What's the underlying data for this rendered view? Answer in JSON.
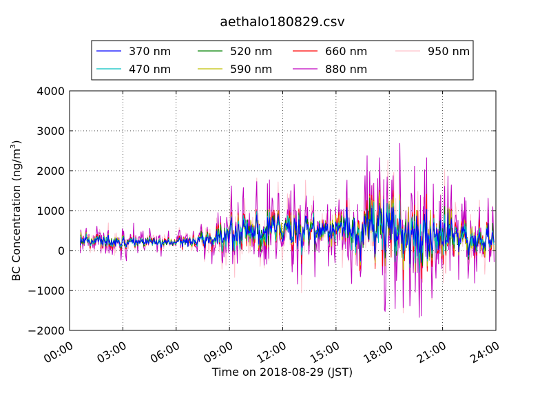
{
  "chart_data": {
    "type": "line",
    "title": "aethalo180829.csv",
    "xlabel": "Time on 2018-08-29 (JST)",
    "ylabel_main": "BC Concentration (ng/m",
    "ylabel_sup": "3",
    "ylabel_end": ")",
    "xlim": [
      0,
      24
    ],
    "ylim": [
      -2000,
      4000
    ],
    "x_ticks": [
      0,
      3,
      6,
      9,
      12,
      15,
      18,
      21,
      24
    ],
    "x_tick_labels": [
      "00:00",
      "03:00",
      "06:00",
      "09:00",
      "12:00",
      "15:00",
      "18:00",
      "21:00",
      "24:00"
    ],
    "y_ticks": [
      -2000,
      -1000,
      0,
      1000,
      2000,
      3000,
      4000
    ],
    "y_tick_labels": [
      "−2000",
      "−1000",
      "0",
      "1000",
      "2000",
      "3000",
      "4000"
    ],
    "grid": true,
    "legend_position": "top",
    "series": [
      {
        "name": "370 nm",
        "color": "#0000ff",
        "scale": 0.45,
        "seed": 11
      },
      {
        "name": "470 nm",
        "color": "#00bfbf",
        "scale": 0.5,
        "seed": 23
      },
      {
        "name": "520 nm",
        "color": "#008000",
        "scale": 0.55,
        "seed": 37
      },
      {
        "name": "590 nm",
        "color": "#bfbf00",
        "scale": 0.6,
        "seed": 41
      },
      {
        "name": "660 nm",
        "color": "#ff0000",
        "scale": 0.7,
        "seed": 53
      },
      {
        "name": "880 nm",
        "color": "#bf00bf",
        "scale": 1.3,
        "seed": 67
      },
      {
        "name": "950 nm",
        "color": "#ffc0cb",
        "scale": 1.25,
        "seed": 79
      }
    ],
    "envelope": {
      "hours": [
        0,
        3,
        6,
        8,
        9,
        11,
        13,
        14.5,
        15.5,
        16.5,
        17.5,
        18.5,
        20,
        21,
        22,
        24
      ],
      "mean": [
        250,
        220,
        180,
        300,
        420,
        550,
        500,
        450,
        600,
        420,
        650,
        400,
        350,
        380,
        300,
        250
      ],
      "amp": [
        350,
        300,
        200,
        450,
        850,
        900,
        1000,
        600,
        900,
        1500,
        1900,
        1800,
        1400,
        1300,
        900,
        700
      ]
    }
  }
}
